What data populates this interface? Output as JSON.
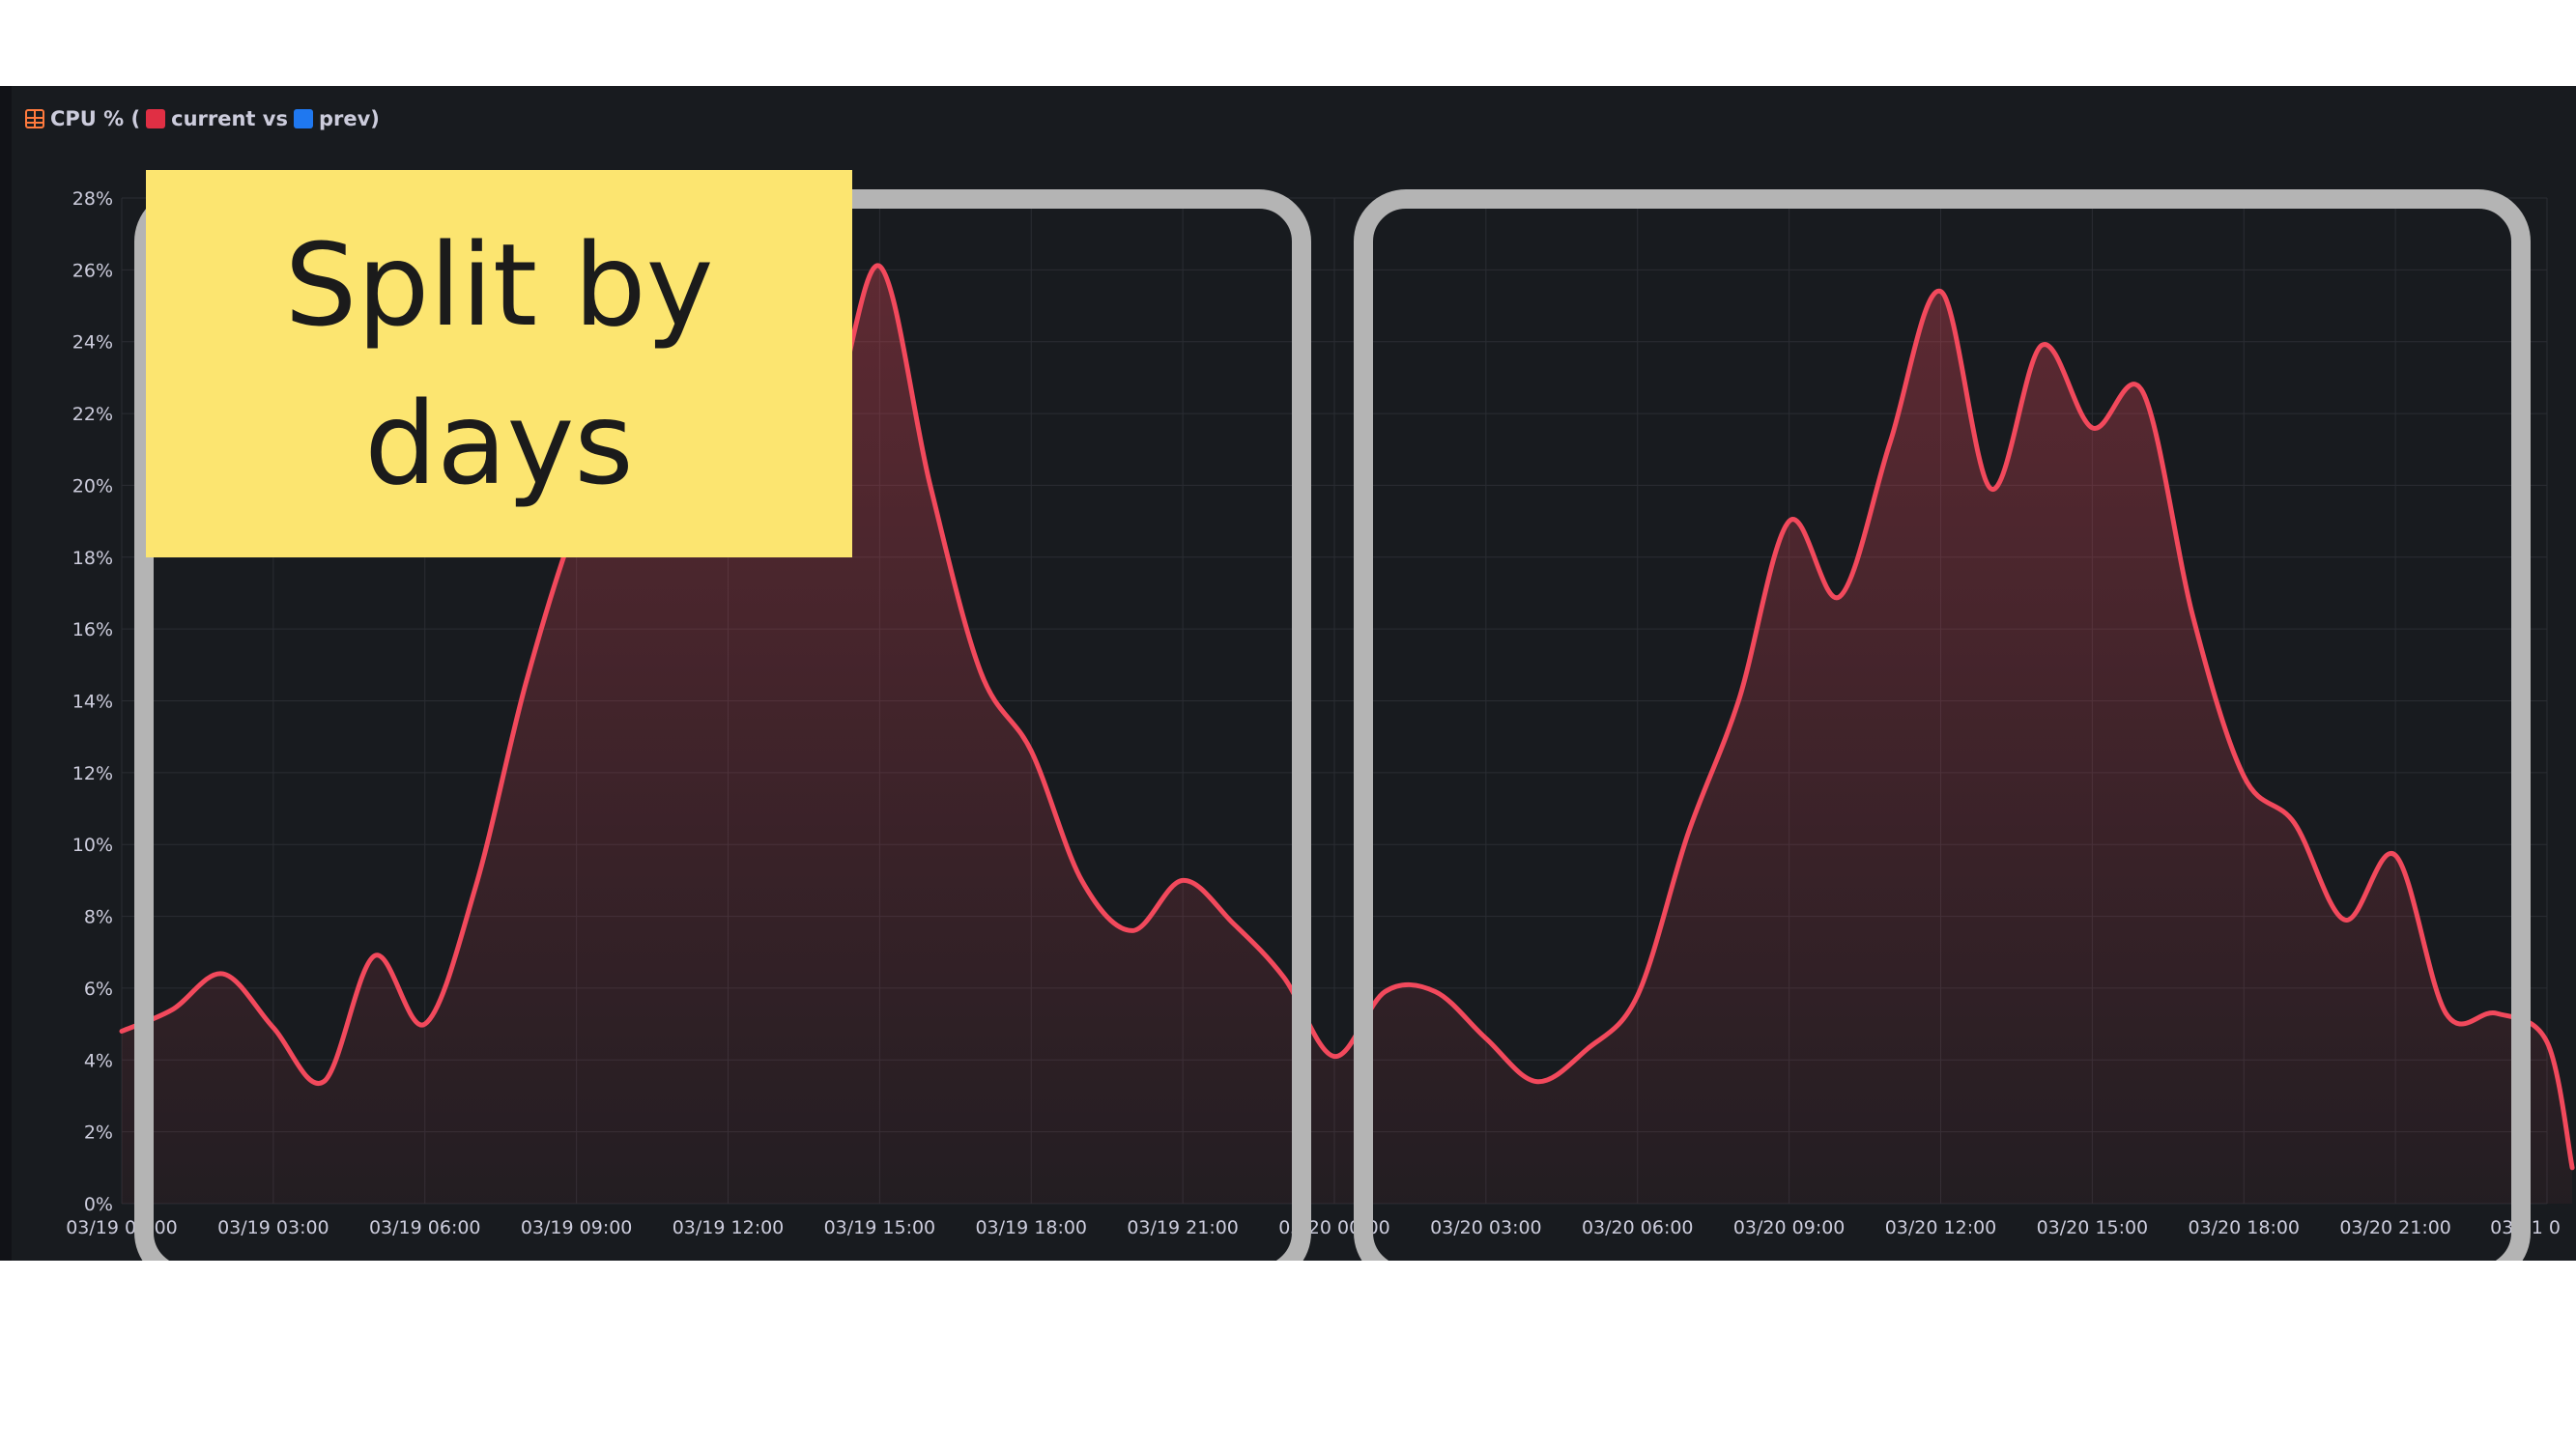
{
  "panel": {
    "title_prefix": "CPU % (",
    "title_current": "current vs",
    "title_prev": "prev)"
  },
  "note": {
    "text": "Split by days"
  },
  "colors": {
    "series": "#f2495c",
    "panel_bg": "#181b1f",
    "highlight_box": "#b4b4b4",
    "note_bg": "#fce570"
  },
  "chart_data": {
    "type": "area",
    "title": "CPU % (current vs prev)",
    "ylim": [
      0,
      28
    ],
    "y_ticks": [
      "0%",
      "2%",
      "4%",
      "6%",
      "8%",
      "10%",
      "12%",
      "14%",
      "16%",
      "18%",
      "20%",
      "22%",
      "24%",
      "26%",
      "28%"
    ],
    "x_ticks": [
      "03/19 00:00",
      "03/19 03:00",
      "03/19 06:00",
      "03/19 09:00",
      "03/19 12:00",
      "03/19 15:00",
      "03/19 18:00",
      "03/19 21:00",
      "03/20 00:00",
      "03/20 03:00",
      "03/20 06:00",
      "03/20 09:00",
      "03/20 12:00",
      "03/20 15:00",
      "03/20 18:00",
      "03/20 21:00",
      "03/21 0"
    ],
    "grid": true,
    "legend": "in title",
    "series": [
      {
        "name": "current",
        "x": [
          "03/19 00:00",
          "03/19 01:00",
          "03/19 02:00",
          "03/19 03:00",
          "03/19 04:00",
          "03/19 05:00",
          "03/19 06:00",
          "03/19 07:00",
          "03/19 08:00",
          "03/19 09:00",
          "03/19 10:00",
          "03/19 11:00",
          "03/19 12:00",
          "03/19 13:00",
          "03/19 14:00",
          "03/19 15:00",
          "03/19 16:00",
          "03/19 17:00",
          "03/19 18:00",
          "03/19 19:00",
          "03/19 20:00",
          "03/19 21:00",
          "03/19 22:00",
          "03/19 23:00",
          "03/20 00:00",
          "03/20 01:00",
          "03/20 02:00",
          "03/20 03:00",
          "03/20 04:00",
          "03/20 05:00",
          "03/20 06:00",
          "03/20 07:00",
          "03/20 08:00",
          "03/20 09:00",
          "03/20 10:00",
          "03/20 11:00",
          "03/20 12:00",
          "03/20 13:00",
          "03/20 14:00",
          "03/20 15:00",
          "03/20 16:00",
          "03/20 17:00",
          "03/20 18:00",
          "03/20 19:00",
          "03/20 20:00",
          "03/20 21:00",
          "03/20 22:00",
          "03/20 23:00",
          "03/21 00:00",
          "03/21 00:30"
        ],
        "values": [
          4.8,
          5.4,
          6.4,
          4.9,
          3.4,
          6.9,
          5.0,
          8.8,
          14.5,
          19.0,
          21.8,
          23.2,
          24.0,
          24.4,
          22.0,
          26.1,
          20.0,
          14.8,
          12.6,
          9.0,
          7.6,
          9.0,
          7.8,
          6.3,
          4.1,
          5.9,
          5.9,
          4.6,
          3.4,
          4.3,
          5.8,
          10.3,
          14.0,
          19.0,
          16.9,
          21.2,
          25.4,
          19.9,
          23.9,
          21.6,
          22.6,
          16.3,
          11.9,
          10.6,
          7.9,
          9.7,
          5.3,
          5.3,
          4.5,
          1.0
        ]
      }
    ]
  }
}
